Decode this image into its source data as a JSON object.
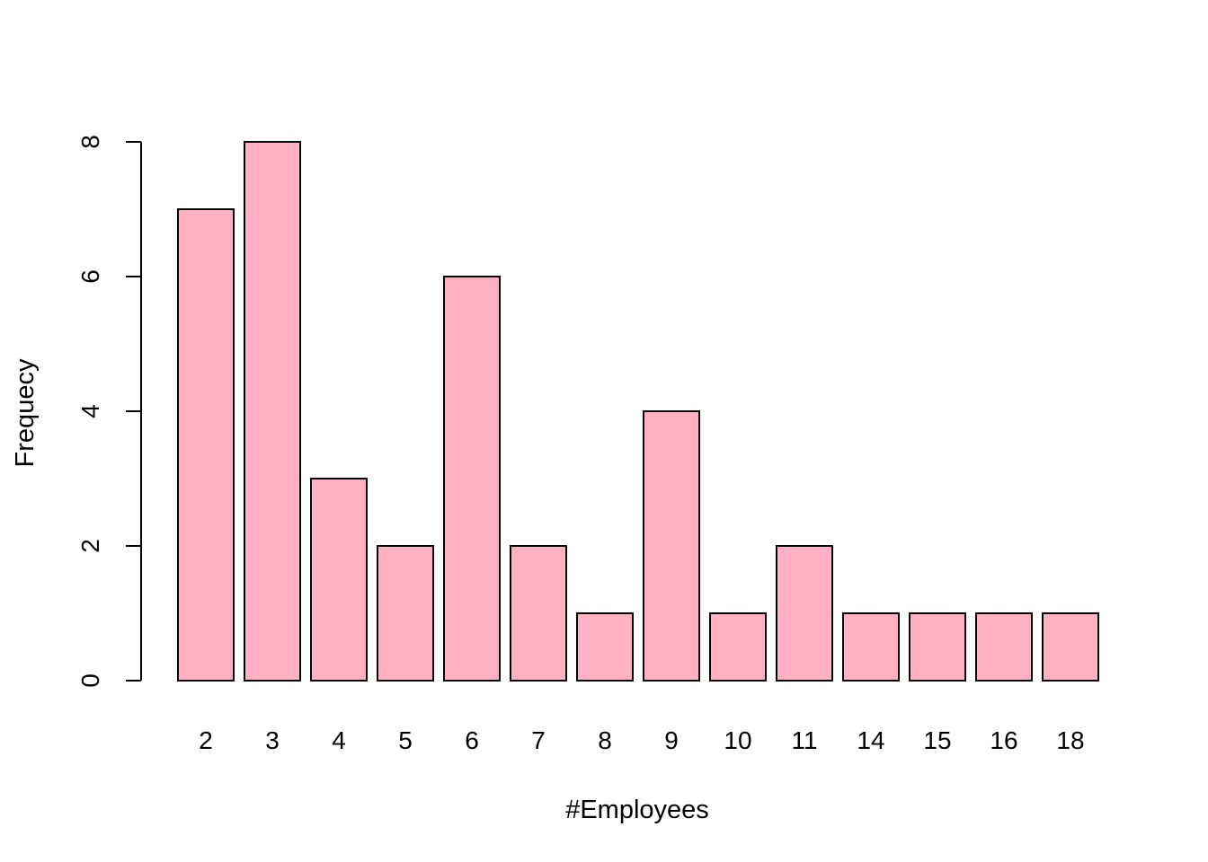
{
  "chart_data": {
    "type": "bar",
    "categories": [
      "2",
      "3",
      "4",
      "5",
      "6",
      "7",
      "8",
      "9",
      "10",
      "11",
      "14",
      "15",
      "16",
      "18"
    ],
    "values": [
      7,
      8,
      3,
      2,
      6,
      2,
      1,
      4,
      1,
      2,
      1,
      1,
      1,
      1
    ],
    "title": "",
    "xlabel": "#Employees",
    "ylabel": "Frequecy",
    "ylim": [
      0,
      8
    ],
    "yticks": [
      0,
      2,
      4,
      6,
      8
    ],
    "bar_color": "#FFB0C2",
    "edge_color": "#000000",
    "grid": false
  }
}
